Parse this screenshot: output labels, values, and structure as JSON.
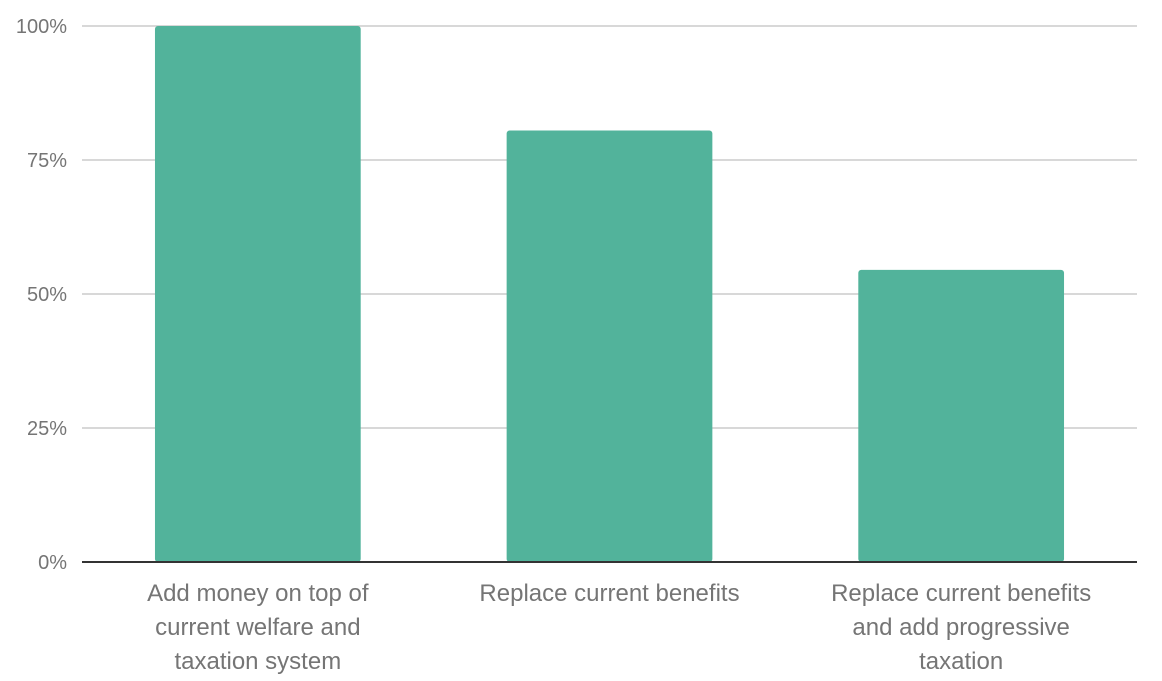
{
  "chart_data": {
    "type": "bar",
    "categories": [
      [
        "Add money on top of",
        "current welfare and",
        "taxation system"
      ],
      [
        "Replace current benefits"
      ],
      [
        "Replace current benefits",
        "and add progressive",
        "taxation"
      ]
    ],
    "values": [
      100,
      80.5,
      54.5
    ],
    "ylim": [
      0,
      100
    ],
    "yticks": [
      0,
      25,
      50,
      75,
      100
    ],
    "ytick_labels": [
      "0%",
      "25%",
      "50%",
      "75%",
      "100%"
    ],
    "grid": true,
    "colors": {
      "bar": "#52b39b",
      "grid": "#cccccc",
      "axis": "#333333",
      "text": "#757575"
    }
  }
}
